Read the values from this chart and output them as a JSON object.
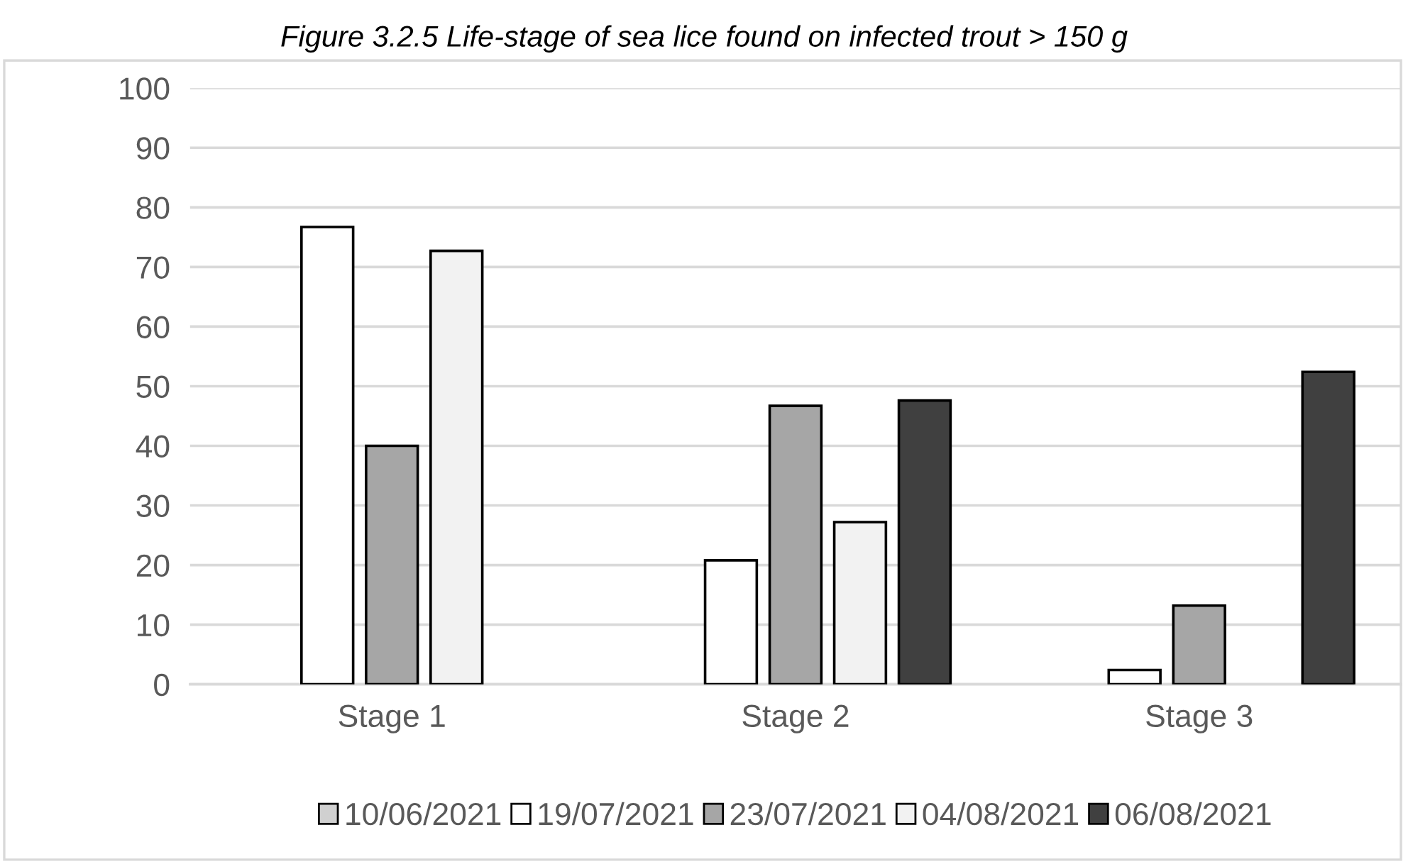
{
  "chart_data": {
    "type": "bar",
    "title": "Figure 3.2.5 Life-stage of sea lice found on infected trout > 150 g",
    "categories": [
      "Stage 1",
      "Stage 2",
      "Stage 3"
    ],
    "series": [
      {
        "name": "10/06/2021",
        "color": "#d0d0d0",
        "values": [
          null,
          null,
          null
        ]
      },
      {
        "name": "19/07/2021",
        "color": "#ffffff",
        "values": [
          76.7,
          20.8,
          2.4
        ]
      },
      {
        "name": "23/07/2021",
        "color": "#a6a6a6",
        "values": [
          40,
          46.7,
          13.2
        ]
      },
      {
        "name": "04/08/2021",
        "color": "#f2f2f2",
        "values": [
          72.7,
          27.2,
          null
        ]
      },
      {
        "name": "06/08/2021",
        "color": "#404040",
        "values": [
          null,
          47.6,
          52.4
        ]
      }
    ],
    "ylim": [
      0,
      100
    ],
    "yticks": [
      0,
      10,
      20,
      30,
      40,
      50,
      60,
      70,
      80,
      90,
      100
    ],
    "grid": "y",
    "legend": "bottom"
  }
}
